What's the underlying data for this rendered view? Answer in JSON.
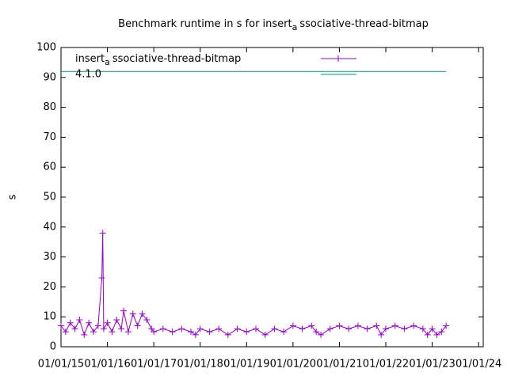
{
  "chart_data": {
    "type": "line",
    "title": "Benchmark runtime in s for insert_associative-thread-bitmap",
    "y_label": "s",
    "xlim": [
      2015,
      2024.1
    ],
    "xticks": [
      {
        "value": 2015,
        "label": "01/01/15"
      },
      {
        "value": 2016,
        "label": "01/01/16"
      },
      {
        "value": 2017,
        "label": "01/01/17"
      },
      {
        "value": 2018,
        "label": "01/01/18"
      },
      {
        "value": 2019,
        "label": "01/01/19"
      },
      {
        "value": 2020,
        "label": "01/01/20"
      },
      {
        "value": 2021,
        "label": "01/01/21"
      },
      {
        "value": 2022,
        "label": "01/01/22"
      },
      {
        "value": 2023,
        "label": "01/01/23"
      },
      {
        "value": 2024,
        "label": "01/01/24"
      }
    ],
    "ylim": [
      0,
      100
    ],
    "yticks": [
      0,
      10,
      20,
      30,
      40,
      50,
      60,
      70,
      80,
      90,
      100
    ],
    "series": [
      {
        "name": "insert_associative-thread-bitmap",
        "color": "#9400d3",
        "marker": "+",
        "x": [
          2015.0,
          2015.1,
          2015.2,
          2015.3,
          2015.4,
          2015.5,
          2015.6,
          2015.7,
          2015.8,
          2015.88,
          2015.9,
          2015.92,
          2016.0,
          2016.1,
          2016.2,
          2016.3,
          2016.35,
          2016.45,
          2016.55,
          2016.65,
          2016.75,
          2016.85,
          2016.95,
          2017.0,
          2017.2,
          2017.4,
          2017.6,
          2017.8,
          2017.9,
          2018.0,
          2018.2,
          2018.4,
          2018.6,
          2018.8,
          2019.0,
          2019.2,
          2019.4,
          2019.6,
          2019.8,
          2020.0,
          2020.2,
          2020.4,
          2020.5,
          2020.6,
          2020.8,
          2021.0,
          2021.2,
          2021.4,
          2021.6,
          2021.8,
          2021.9,
          2022.0,
          2022.2,
          2022.4,
          2022.6,
          2022.8,
          2022.9,
          2023.0,
          2023.1,
          2023.2,
          2023.3
        ],
        "values": [
          7,
          5,
          8,
          6,
          9,
          4,
          8,
          5,
          7,
          23,
          38,
          6,
          8,
          5,
          9,
          6,
          12,
          5,
          11,
          7,
          11,
          9,
          6,
          5,
          6,
          5,
          6,
          5,
          4,
          6,
          5,
          6,
          4,
          6,
          5,
          6,
          4,
          6,
          5,
          7,
          6,
          7,
          5,
          4,
          6,
          7,
          6,
          7,
          6,
          7,
          4,
          6,
          7,
          6,
          7,
          6,
          4,
          6,
          4,
          5,
          7
        ]
      },
      {
        "name": "4.1.0",
        "color": "#009e73",
        "marker": "none",
        "x": [
          2015.0,
          2023.3
        ],
        "values": [
          92,
          92
        ]
      }
    ]
  }
}
